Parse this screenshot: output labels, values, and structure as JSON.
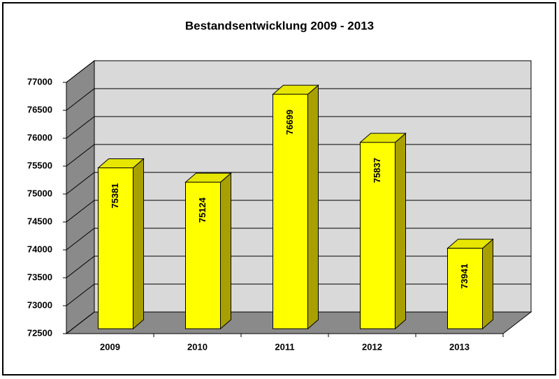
{
  "chart_data": {
    "type": "bar3d",
    "title": "Bestandsentwicklung  2009 - 2013",
    "categories": [
      "2009",
      "2010",
      "2011",
      "2012",
      "2013"
    ],
    "values": [
      75381,
      75124,
      76699,
      75837,
      73941
    ],
    "color": "#ffff00",
    "ylim": [
      72500,
      77000
    ],
    "yticks": [
      72500,
      73000,
      73500,
      74000,
      74500,
      75000,
      75500,
      76000,
      76500,
      77000
    ],
    "grid": true
  }
}
